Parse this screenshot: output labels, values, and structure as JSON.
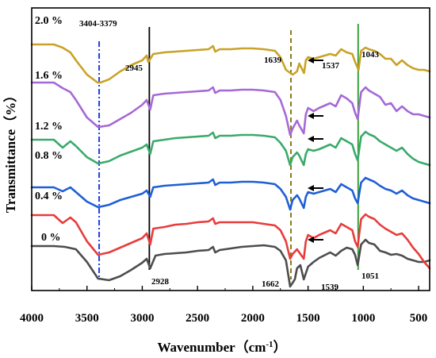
{
  "chart_data": {
    "type": "line",
    "xlabel": "Wavenumber",
    "xlabel_unit": "cm",
    "xlabel_unit_exp": "-1",
    "xlabel_unit_open": "（",
    "xlabel_unit_close": "）",
    "ylabel": "Transmittance（%）",
    "xlim": [
      4000,
      400
    ],
    "x_reversed": true,
    "x_ticks": [
      4000,
      3500,
      3000,
      2500,
      2000,
      1500,
      1000,
      500
    ],
    "x_tick_labels": [
      "4000",
      "3500",
      "3000",
      "2500",
      "2000",
      "1500",
      "1000",
      "500"
    ],
    "y_scale": "relative transmittance, stacked with vertical offsets",
    "grid": false,
    "series": [
      {
        "name": "0 %",
        "color": "#4d4d4d",
        "x": [
          4000,
          3800,
          3700,
          3600,
          3500,
          3400,
          3300,
          3200,
          3100,
          3000,
          2960,
          2928,
          2880,
          2800,
          2700,
          2600,
          2500,
          2400,
          2360,
          2340,
          2300,
          2200,
          2100,
          2000,
          1900,
          1800,
          1750,
          1700,
          1662,
          1620,
          1600,
          1570,
          1539,
          1500,
          1450,
          1400,
          1300,
          1250,
          1200,
          1150,
          1100,
          1075,
          1051,
          1020,
          980,
          950,
          900,
          850,
          800,
          750,
          700,
          650,
          600,
          550,
          500,
          450,
          400
        ],
        "y": [
          56,
          56,
          55,
          52,
          36,
          15,
          13,
          18,
          26,
          35,
          40,
          28,
          44,
          46,
          47,
          48,
          50,
          51,
          55,
          48,
          51,
          53,
          55,
          56,
          57,
          55,
          50,
          38,
          5,
          14,
          28,
          32,
          14,
          30,
          36,
          41,
          48,
          44,
          50,
          54,
          52,
          45,
          32,
          58,
          64,
          60,
          58,
          50,
          48,
          45,
          46,
          44,
          40,
          38,
          36,
          36,
          38
        ]
      },
      {
        "name": "0.4 %",
        "color": "#e83c3c",
        "x": [
          4000,
          3800,
          3720,
          3650,
          3600,
          3500,
          3400,
          3300,
          3200,
          3100,
          3000,
          2960,
          2928,
          2900,
          2800,
          2700,
          2600,
          2500,
          2400,
          2360,
          2340,
          2300,
          2200,
          2100,
          2000,
          1900,
          1800,
          1750,
          1700,
          1662,
          1640,
          1600,
          1580,
          1539,
          1520,
          1500,
          1450,
          1400,
          1300,
          1250,
          1200,
          1150,
          1100,
          1075,
          1051,
          1020,
          980,
          950,
          900,
          850,
          800,
          750,
          700,
          650,
          600,
          550,
          500,
          450,
          400
        ],
        "y": [
          95,
          95,
          85,
          92,
          86,
          62,
          45,
          48,
          54,
          60,
          66,
          72,
          58,
          78,
          80,
          83,
          84,
          86,
          87,
          91,
          84,
          86,
          86,
          86,
          86,
          84,
          82,
          76,
          62,
          40,
          46,
          52,
          48,
          40,
          62,
          70,
          66,
          70,
          76,
          72,
          84,
          80,
          76,
          62,
          55,
          90,
          96,
          93,
          90,
          83,
          78,
          74,
          70,
          72,
          64,
          54,
          46,
          36,
          28
        ]
      },
      {
        "name": "0.8 %",
        "color": "#1f5fd4",
        "x": [
          4000,
          3800,
          3720,
          3650,
          3600,
          3500,
          3400,
          3300,
          3200,
          3100,
          3000,
          2960,
          2928,
          2900,
          2800,
          2700,
          2600,
          2500,
          2400,
          2360,
          2340,
          2300,
          2200,
          2100,
          2000,
          1900,
          1800,
          1750,
          1700,
          1662,
          1640,
          1600,
          1580,
          1539,
          1520,
          1500,
          1450,
          1400,
          1300,
          1250,
          1200,
          1150,
          1100,
          1075,
          1051,
          1020,
          980,
          950,
          900,
          850,
          800,
          750,
          700,
          650,
          600,
          550,
          500,
          450,
          400
        ],
        "y": [
          130,
          130,
          125,
          130,
          124,
          112,
          105,
          108,
          114,
          118,
          122,
          126,
          118,
          130,
          132,
          133,
          134,
          135,
          136,
          140,
          133,
          136,
          136,
          137,
          137,
          136,
          134,
          128,
          118,
          102,
          114,
          120,
          116,
          104,
          118,
          124,
          122,
          124,
          128,
          124,
          134,
          130,
          126,
          116,
          110,
          136,
          142,
          140,
          137,
          132,
          128,
          126,
          122,
          126,
          120,
          116,
          114,
          112,
          110
        ]
      },
      {
        "name": "1.2 %",
        "color": "#3aaa6a",
        "x": [
          4000,
          3800,
          3720,
          3650,
          3600,
          3500,
          3400,
          3300,
          3200,
          3100,
          3000,
          2960,
          2928,
          2900,
          2800,
          2700,
          2600,
          2500,
          2400,
          2360,
          2340,
          2300,
          2200,
          2100,
          2000,
          1900,
          1800,
          1750,
          1700,
          1662,
          1640,
          1600,
          1580,
          1539,
          1520,
          1500,
          1450,
          1400,
          1300,
          1250,
          1200,
          1150,
          1100,
          1075,
          1051,
          1020,
          980,
          950,
          900,
          850,
          800,
          750,
          700,
          650,
          600,
          550,
          500,
          450,
          400
        ],
        "y": [
          190,
          190,
          180,
          188,
          182,
          168,
          160,
          163,
          170,
          175,
          180,
          184,
          172,
          188,
          190,
          192,
          193,
          194,
          195,
          199,
          192,
          195,
          195,
          196,
          196,
          195,
          193,
          186,
          176,
          158,
          168,
          174,
          170,
          158,
          172,
          178,
          176,
          178,
          184,
          180,
          192,
          188,
          184,
          172,
          164,
          194,
          200,
          197,
          194,
          188,
          184,
          180,
          176,
          180,
          172,
          166,
          162,
          160,
          158
        ]
      },
      {
        "name": "1.6 %",
        "color": "#a569d6",
        "x": [
          4000,
          3800,
          3720,
          3650,
          3600,
          3500,
          3400,
          3300,
          3200,
          3100,
          3000,
          2960,
          2928,
          2900,
          2800,
          2700,
          2600,
          2500,
          2400,
          2360,
          2340,
          2300,
          2200,
          2100,
          2000,
          1900,
          1800,
          1750,
          1700,
          1662,
          1640,
          1600,
          1580,
          1539,
          1520,
          1500,
          1450,
          1400,
          1300,
          1250,
          1200,
          1150,
          1100,
          1075,
          1051,
          1020,
          980,
          950,
          900,
          850,
          800,
          750,
          700,
          650,
          600,
          550,
          500,
          450,
          400
        ],
        "y": [
          262,
          262,
          255,
          250,
          240,
          218,
          206,
          208,
          216,
          224,
          234,
          240,
          228,
          246,
          248,
          249,
          250,
          251,
          252,
          256,
          249,
          252,
          252,
          253,
          253,
          252,
          250,
          240,
          220,
          196,
          204,
          214,
          208,
          198,
          222,
          230,
          226,
          230,
          236,
          232,
          246,
          242,
          236,
          224,
          216,
          250,
          256,
          252,
          248,
          244,
          234,
          236,
          226,
          232,
          226,
          222,
          222,
          220,
          218
        ]
      },
      {
        "name": "2.0 %",
        "color": "#c9a227",
        "x": [
          4000,
          3800,
          3720,
          3650,
          3600,
          3500,
          3404,
          3379,
          3300,
          3200,
          3100,
          3000,
          2960,
          2945,
          2900,
          2800,
          2700,
          2600,
          2500,
          2400,
          2360,
          2340,
          2300,
          2200,
          2100,
          2000,
          1900,
          1800,
          1750,
          1700,
          1639,
          1600,
          1580,
          1537,
          1520,
          1500,
          1450,
          1400,
          1300,
          1250,
          1200,
          1150,
          1100,
          1075,
          1043,
          1020,
          980,
          950,
          900,
          850,
          800,
          750,
          700,
          650,
          600,
          550,
          500,
          450,
          400
        ],
        "y": [
          310,
          310,
          306,
          300,
          290,
          272,
          262,
          262,
          266,
          276,
          284,
          290,
          296,
          288,
          298,
          300,
          301,
          302,
          303,
          304,
          308,
          301,
          304,
          304,
          305,
          305,
          304,
          302,
          294,
          278,
          272,
          276,
          286,
          274,
          290,
          294,
          292,
          294,
          298,
          296,
          304,
          300,
          298,
          288,
          278,
          302,
          306,
          304,
          302,
          298,
          292,
          292,
          284,
          290,
          284,
          280,
          278,
          278,
          276
        ]
      }
    ],
    "reference_lines": [
      {
        "x": 3390,
        "style": "dash-dot",
        "color": "#1f3fe0",
        "name": "oh-band-marker-line"
      },
      {
        "x": 2936,
        "style": "solid",
        "color": "#000000",
        "name": "ch-band-marker-line"
      },
      {
        "x": 1655,
        "style": "dashed",
        "color": "#8a7d1a",
        "name": "amide-i-marker-line"
      },
      {
        "x": 1047,
        "style": "solid",
        "color": "#2a9a2a",
        "name": "co-band-marker-line"
      }
    ],
    "annotations": [
      {
        "text": "3404-3379",
        "x": 3390
      },
      {
        "text": "2945",
        "x": 2945
      },
      {
        "text": "1639",
        "x": 1639
      },
      {
        "text": "1537",
        "x": 1537
      },
      {
        "text": "1043",
        "x": 1043
      },
      {
        "text": "2928",
        "x": 2928
      },
      {
        "text": "1662",
        "x": 1662
      },
      {
        "text": "1539",
        "x": 1539
      },
      {
        "text": "1051",
        "x": 1051
      }
    ],
    "arrows_at_x": [
      1560,
      1540,
      1540,
      1540,
      1540
    ],
    "arrow_direction": "left"
  }
}
